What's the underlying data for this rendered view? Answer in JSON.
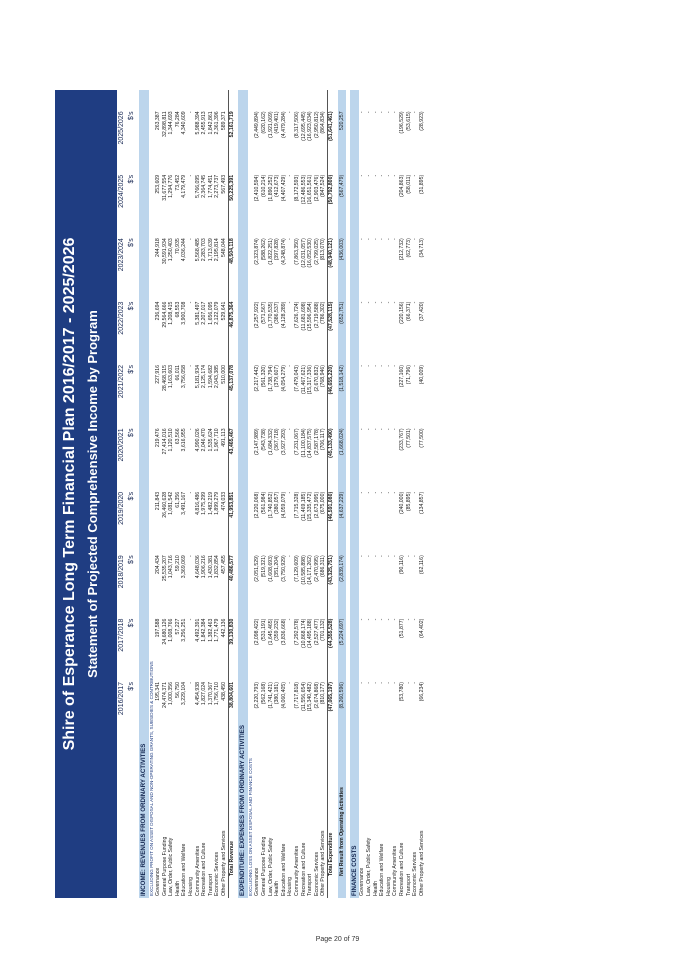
{
  "header": {
    "title": "Shire of Esperance Long Term Financial Plan 2016/2017 - 2025/2026",
    "subtitle": "Statement of Projected Comprehensive Income by Program"
  },
  "columns": [
    {
      "year": "2016/2017",
      "unit": "$'s"
    },
    {
      "year": "2017/2018",
      "unit": "$'s"
    },
    {
      "year": "2018/2019",
      "unit": "$'s"
    },
    {
      "year": "2019/2020",
      "unit": "$'s"
    },
    {
      "year": "2020/2021",
      "unit": "$'s"
    },
    {
      "year": "2021/2022",
      "unit": "$'s"
    },
    {
      "year": "2022/2023",
      "unit": "$'s"
    },
    {
      "year": "2023/2024",
      "unit": "$'s"
    },
    {
      "year": "2024/2025",
      "unit": "$'s"
    },
    {
      "year": "2025/2026",
      "unit": "$'s"
    }
  ],
  "rows": [
    {
      "kind": "sec",
      "label": "INCOME: REVENUES FROM ORDINARY ACTIVITIES"
    },
    {
      "kind": "sub",
      "label": "EXCLUDING PROFIT ON ASSET DISPOSAL AND NON-OPERATING GRANTS, SUBSIDIES & CONTRIBUTIONS"
    },
    {
      "kind": "item",
      "label": "Governance",
      "values": [
        "195,341",
        "197,588",
        "204,434",
        "211,843",
        "219,476",
        "227,916",
        "236,694",
        "244,918",
        "253,609",
        "263,387"
      ]
    },
    {
      "kind": "item",
      "label": "General Purpose Funding",
      "values": [
        "24,474,371",
        "24,680,126",
        "25,535,207",
        "26,460,628",
        "27,414,016",
        "28,468,315",
        "29,564,666",
        "30,591,934",
        "31,677,554",
        "32,898,811"
      ]
    },
    {
      "kind": "item",
      "label": "Law, Order, Public Safety",
      "values": [
        "1,000,356",
        "1,008,766",
        "1,043,716",
        "1,081,542",
        "1,120,510",
        "1,163,603",
        "1,208,415",
        "1,250,403",
        "1,294,776",
        "1,344,693"
      ]
    },
    {
      "kind": "item",
      "label": "Health",
      "values": [
        "56,750",
        "57,227",
        "59,210",
        "61,356",
        "63,566",
        "66,011",
        "68,553",
        "70,935",
        "73,452",
        "76,284"
      ]
    },
    {
      "kind": "item",
      "label": "Education and Welfare",
      "values": [
        "3,229,104",
        "3,256,251",
        "3,369,069",
        "3,491,167",
        "3,616,955",
        "3,756,058",
        "3,900,708",
        "4,036,244",
        "4,179,479",
        "4,340,609"
      ]
    },
    {
      "kind": "item",
      "label": "Housing",
      "values": [
        "-",
        "-",
        "-",
        "-",
        "-",
        "-",
        "-",
        "-",
        "-",
        "-"
      ]
    },
    {
      "kind": "item",
      "label": "Community Amenities",
      "values": [
        "4,454,938",
        "4,492,391",
        "4,648,036",
        "4,816,486",
        "4,990,026",
        "5,181,934",
        "5,381,497",
        "5,568,485",
        "5,766,095",
        "5,988,394"
      ]
    },
    {
      "kind": "item",
      "label": "Recreation and Culture",
      "values": [
        "1,827,024",
        "1,842,384",
        "1,906,216",
        "1,975,299",
        "2,046,470",
        "2,125,174",
        "2,207,017",
        "2,283,703",
        "2,364,745",
        "2,455,913"
      ]
    },
    {
      "kind": "item",
      "label": "Transport",
      "values": [
        "1,370,367",
        "1,382,463",
        "1,430,381",
        "1,482,219",
        "1,535,624",
        "1,594,682",
        "1,656,095",
        "1,713,639",
        "1,774,451",
        "1,842,861"
      ]
    },
    {
      "kind": "item",
      "label": "Economic Services",
      "values": [
        "1,756,710",
        "1,771,479",
        "1,832,854",
        "1,899,279",
        "1,967,710",
        "2,043,385",
        "2,122,079",
        "2,195,814",
        "2,273,737",
        "2,361,396"
      ]
    },
    {
      "kind": "item",
      "label": "Other Property and Services",
      "values": [
        "438,450",
        "442,136",
        "457,455",
        "474,033",
        "491,113",
        "510,000",
        "529,641",
        "548,044",
        "567,493",
        "589,371"
      ]
    },
    {
      "kind": "tot",
      "label": "Total Revenue",
      "values": [
        "38,804,601",
        "39,130,830",
        "40,486,577",
        "41,953,851",
        "43,465,467",
        "45,137,078",
        "46,875,364",
        "48,504,118",
        "50,225,391",
        "52,161,719"
      ]
    },
    {
      "kind": "gap"
    },
    {
      "kind": "sec",
      "label": "EXPENDITURE: EXPENSES FROM ORDINARY ACTIVITIES"
    },
    {
      "kind": "sub",
      "label": "EXCLUDING LOSS ON ASSET DISPOSAL AND FINANCE COSTS"
    },
    {
      "kind": "item",
      "label": "Governance",
      "values": [
        "(2,220,793)",
        "(2,098,422)",
        "(2,051,529)",
        "(2,220,068)",
        "(2,147,989)",
        "(2,217,442)",
        "(2,257,922)",
        "(2,323,874)",
        "(2,410,594)",
        "(2,449,894)"
      ]
    },
    {
      "kind": "item",
      "label": "General Purpose Funding",
      "values": [
        "(562,168)",
        "(531,191)",
        "(519,321)",
        "(561,984)",
        "(543,738)",
        "(561,320)",
        "(571,567)",
        "(588,262)",
        "(610,214)",
        "(620,162)"
      ]
    },
    {
      "kind": "item",
      "label": "Law, Order, Public Safety",
      "values": [
        "(1,741,421)",
        "(1,645,465)",
        "(1,608,693)",
        "(1,740,852)",
        "(1,684,332)",
        "(1,738,794)",
        "(1,770,535)",
        "(1,822,251)",
        "(1,890,252)",
        "(1,921,069)"
      ]
    },
    {
      "kind": "item",
      "label": "Health",
      "values": [
        "(380,181)",
        "(359,232)",
        "(351,204)",
        "(380,057)",
        "(367,718)",
        "(379,607)",
        "(386,537)",
        "(397,828)",
        "(412,673)",
        "(419,401)"
      ]
    },
    {
      "kind": "item",
      "label": "Education and Welfare",
      "values": [
        "(4,060,405)",
        "(3,836,668)",
        "(3,750,929)",
        "(4,059,079)",
        "(3,927,293)",
        "(4,054,279)",
        "(4,128,289)",
        "(4,248,874)",
        "(4,407,429)",
        "(4,479,284)"
      ]
    },
    {
      "kind": "item",
      "label": "Housing",
      "values": [
        "-",
        "-",
        "-",
        "-",
        "-",
        "-",
        "-",
        "-",
        "-",
        "-"
      ]
    },
    {
      "kind": "item",
      "label": "Community Amenities",
      "values": [
        "(7,717,818)",
        "(7,292,578)",
        "(7,129,609)",
        "(7,715,328)",
        "(7,231,067)",
        "(7,479,043)",
        "(7,626,724)",
        "(7,863,350)",
        "(8,172,593)",
        "(8,317,506)"
      ]
    },
    {
      "kind": "item",
      "label": "Recreation and Culture",
      "values": [
        "(11,556,654)",
        "(10,868,174)",
        "(10,585,898)",
        "(11,469,185)",
        "(11,100,184)",
        "(11,467,621)",
        "(11,681,698)",
        "(12,031,057)",
        "(12,486,553)",
        "(12,695,445)"
      ]
    },
    {
      "kind": "item",
      "label": "Transport",
      "values": [
        "(15,340,482)",
        "(14,495,188)",
        "(14,171,262)",
        "(15,335,472)",
        "(14,837,575)",
        "(15,317,336)",
        "(15,596,954)",
        "(16,052,530)",
        "(16,651,561)",
        "(16,923,034)"
      ]
    },
    {
      "kind": "item",
      "label": "Economic Services",
      "values": [
        "(2,674,868)",
        "(2,527,477)",
        "(2,470,995)",
        "(2,673,995)",
        "(2,587,178)",
        "(2,670,832)",
        "(2,719,588)",
        "(2,799,025)",
        "(2,903,476)",
        "(2,950,812)"
      ]
    },
    {
      "kind": "item",
      "label": "Other Property and Services",
      "values": [
        "(810,177)",
        "(701,132)",
        "(686,311)",
        "(675,000)",
        "(706,117)",
        "(768,946)",
        "(786,302)",
        "(813,070)",
        "(847,524)",
        "(864,834)"
      ]
    },
    {
      "kind": "tot",
      "label": "Total Expenditure",
      "values": [
        "(47,065,197)",
        "(44,355,528)",
        "(43,325,751)",
        "(46,591,080)",
        "(45,133,490)",
        "(46,655,220)",
        "(47,528,115)",
        "(48,940,121)",
        "(50,792,800)",
        "(51,641,461)"
      ]
    },
    {
      "kind": "gap"
    },
    {
      "kind": "net",
      "label": "Net Result from Operating Activities",
      "values": [
        "(8,260,596)",
        "(5,224,697)",
        "(2,839,174)",
        "(4,637,229)",
        "(1,668,024)",
        "(1,518,142)",
        "(652,751)",
        "(436,003)",
        "(567,479)",
        "520,257"
      ]
    },
    {
      "kind": "gap"
    },
    {
      "kind": "sec",
      "label": "FINANCE COSTS"
    },
    {
      "kind": "item",
      "label": "Governance",
      "values": [
        "-",
        "-",
        "-",
        "-",
        "-",
        "-",
        "-",
        "-",
        "-",
        "-"
      ]
    },
    {
      "kind": "item",
      "label": "Law, Order, Public Safety",
      "values": [
        "-",
        "-",
        "-",
        "-",
        "-",
        "-",
        "-",
        "-",
        "-",
        "-"
      ]
    },
    {
      "kind": "item",
      "label": "Health",
      "values": [
        "-",
        "-",
        "-",
        "-",
        "-",
        "-",
        "-",
        "-",
        "-",
        "-"
      ]
    },
    {
      "kind": "item",
      "label": "Education and Welfare",
      "values": [
        "-",
        "-",
        "-",
        "-",
        "-",
        "-",
        "-",
        "-",
        "-",
        "-"
      ]
    },
    {
      "kind": "item",
      "label": "Housing",
      "values": [
        "-",
        "-",
        "-",
        "-",
        "-",
        "-",
        "-",
        "-",
        "-",
        "-"
      ]
    },
    {
      "kind": "item",
      "label": "Community Amenities",
      "values": [
        "-",
        "-",
        "-",
        "-",
        "-",
        "-",
        "-",
        "-",
        "-",
        "-"
      ]
    },
    {
      "kind": "item",
      "label": "Recreation and Culture",
      "values": [
        "(53,780)",
        "(51,877)",
        "(90,116)",
        "(240,000)",
        "(233,767)",
        "(227,160)",
        "(220,156)",
        "(212,732)",
        "(204,863)",
        "(196,529)"
      ]
    },
    {
      "kind": "item",
      "label": "Transport",
      "values": [
        "-",
        "-",
        "-",
        "(85,895)",
        "(77,501)",
        "(71,796)",
        "(66,371)",
        "(62,773)",
        "(58,011)",
        "(53,615)"
      ]
    },
    {
      "kind": "item",
      "label": "Economic Services",
      "values": [
        "-",
        "-",
        "-",
        "-",
        "-",
        "-",
        "-",
        "-",
        "-",
        "-"
      ]
    },
    {
      "kind": "item",
      "label": "Other Property and Services",
      "values": [
        "(66,234)",
        "(64,402)",
        "(62,116)",
        "(134,857)",
        "(77,500)",
        "(40,009)",
        "(37,420)",
        "(34,713)",
        "(31,895)",
        "(28,923)"
      ]
    }
  ],
  "footer": {
    "page": "Page 20 of 79"
  }
}
